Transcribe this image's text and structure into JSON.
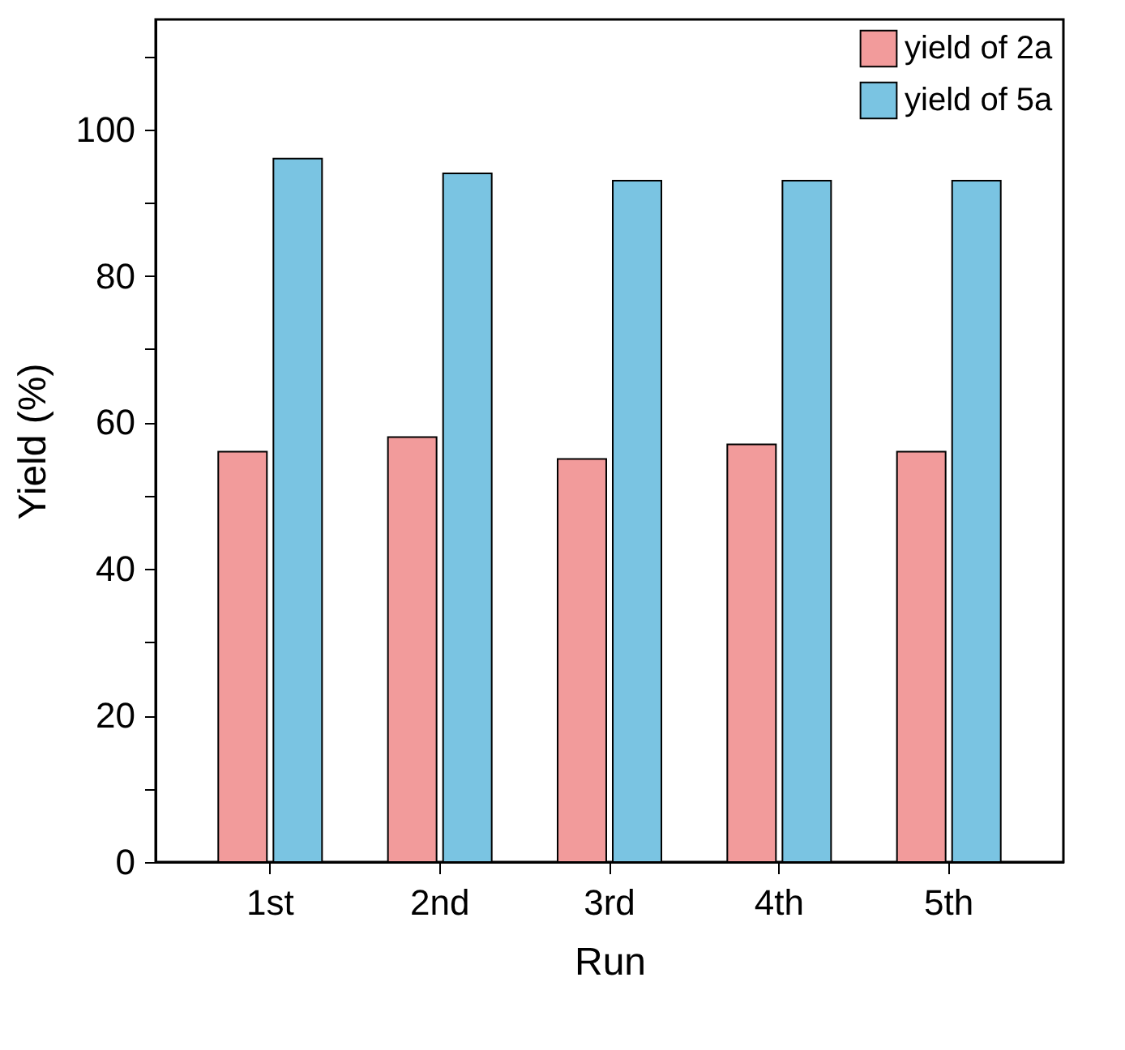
{
  "chart_data": {
    "type": "bar",
    "xlabel": "Run",
    "ylabel": "Yield (%)",
    "categories": [
      "1st",
      "2nd",
      "3rd",
      "4th",
      "5th"
    ],
    "series": [
      {
        "name": "yield of 2a",
        "color": "#f29b9b",
        "values": [
          56,
          58,
          55,
          57,
          56
        ]
      },
      {
        "name": "yield of 5a",
        "color": "#7ac4e2",
        "values": [
          96,
          94,
          93,
          93,
          93
        ]
      }
    ],
    "ylim": [
      0,
      115
    ],
    "yticks": [
      0,
      {
        "value": 10,
        "label": null
      },
      20,
      {
        "value": 30,
        "label": null
      },
      40,
      {
        "value": 50,
        "label": null
      },
      60,
      {
        "value": 70,
        "label": null
      },
      80,
      {
        "value": 90,
        "label": null
      },
      100,
      {
        "value": 110,
        "label": null
      }
    ],
    "grid": false,
    "legend": "top right"
  }
}
